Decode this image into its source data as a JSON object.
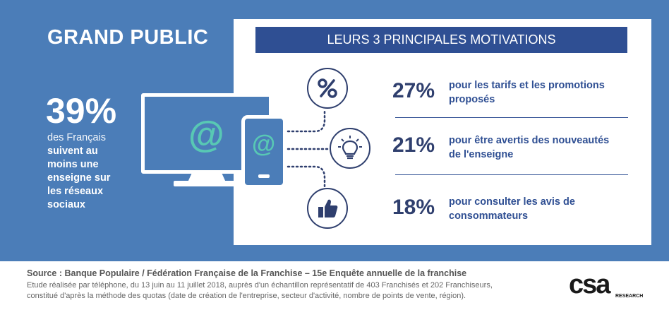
{
  "title": "GRAND PUBLIC",
  "left": {
    "percent": "39%",
    "line1": "des Français",
    "line2": "suivent au",
    "line3": "moins une",
    "line4": "enseigne sur",
    "line5": "les réseaux",
    "line6": "sociaux",
    "at_symbol": "@"
  },
  "panel": {
    "header": "LEURS 3 PRINCIPALES MOTIVATIONS",
    "rows": [
      {
        "icon": "percent-icon",
        "percent": "27%",
        "text_l1": "pour les tarifs et les promotions",
        "text_l2": "proposés"
      },
      {
        "icon": "lightbulb-icon",
        "percent": "21%",
        "text_l1": "pour être avertis des nouveautés",
        "text_l2": "de l'enseigne"
      },
      {
        "icon": "thumbs-up-icon",
        "percent": "18%",
        "text_l1": "pour consulter les avis de",
        "text_l2": "consommateurs"
      }
    ]
  },
  "footer": {
    "source": "Source : Banque Populaire / Fédération Française de la Franchise – 15e Enquête annuelle de la franchise",
    "line1": "Etude réalisée par téléphone, du 13 juin au 11 juillet 2018, auprès d'un échantillon représentatif de 403 Franchisés et 202 Franchiseurs,",
    "line2": "constitué d'après la méthode des quotas (date de création de l'entreprise, secteur d'activité, nombre de points de vente, région).",
    "logo": "csa",
    "logo_sub": "RESEARCH"
  },
  "colors": {
    "banner": "#4b7db8",
    "navy": "#2f3f6e",
    "header_blue": "#2f4f93",
    "teal": "#58c8b4"
  }
}
